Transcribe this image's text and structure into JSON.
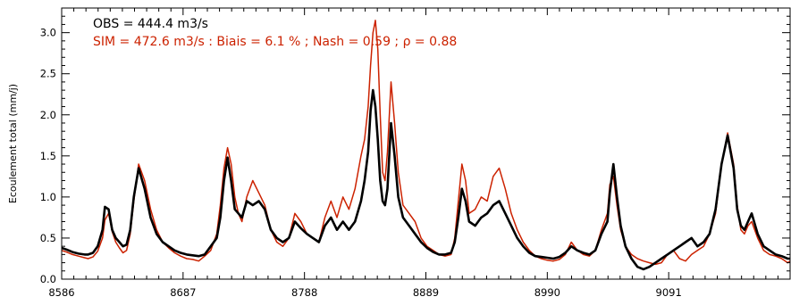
{
  "chart_data": {
    "type": "line",
    "title": "",
    "xlabel": "",
    "ylabel": "Ecoulement total (mm/j)",
    "xlim": [
      8586,
      9192
    ],
    "ylim": [
      0,
      3.3
    ],
    "x_ticks": [
      8586,
      8687,
      8788,
      8889,
      8990,
      9091
    ],
    "x_tick_labels": [
      "8586",
      "8687",
      "8788",
      "8889",
      "8990",
      "9091"
    ],
    "y_ticks": [
      0,
      0.5,
      1.0,
      1.5,
      2.0,
      2.5,
      3.0
    ],
    "y_tick_labels": [
      "0.0",
      "0.5",
      "1.0",
      "1.5",
      "2.0",
      "2.5",
      "3.0"
    ],
    "grid": false,
    "legend": "none",
    "annotations": [
      {
        "name": "obs",
        "text": "OBS = 444.4 m3/s",
        "color": "#000000"
      },
      {
        "name": "sim",
        "text": "SIM = 472.6 m3/s : Biais = 6.1 % ; Nash = 0.59 ; ρ = 0.88",
        "color": "#cc2200"
      }
    ],
    "series": [
      {
        "color": "#cc2200",
        "x": [
          8586,
          8590,
          8595,
          8600,
          8605,
          8608,
          8612,
          8616,
          8620,
          8622,
          8625,
          8628,
          8631,
          8634,
          8637,
          8640,
          8643,
          8646,
          8650,
          8655,
          8660,
          8665,
          8670,
          8675,
          8680,
          8685,
          8690,
          8695,
          8700,
          8705,
          8710,
          8715,
          8718,
          8721,
          8724,
          8727,
          8730,
          8733,
          8736,
          8740,
          8745,
          8750,
          8755,
          8760,
          8765,
          8770,
          8775,
          8780,
          8785,
          8790,
          8795,
          8800,
          8805,
          8810,
          8815,
          8820,
          8825,
          8830,
          8835,
          8838,
          8841,
          8843,
          8845,
          8847,
          8849,
          8851,
          8853,
          8855,
          8857,
          8860,
          8863,
          8866,
          8870,
          8875,
          8880,
          8885,
          8890,
          8895,
          8900,
          8905,
          8910,
          8913,
          8916,
          8919,
          8922,
          8925,
          8930,
          8935,
          8940,
          8945,
          8950,
          8955,
          8960,
          8965,
          8970,
          8975,
          8980,
          8985,
          8990,
          8995,
          9000,
          9005,
          9010,
          9015,
          9020,
          9025,
          9030,
          9035,
          9040,
          9042,
          9045,
          9048,
          9051,
          9055,
          9060,
          9065,
          9070,
          9075,
          9080,
          9085,
          9090,
          9095,
          9100,
          9105,
          9110,
          9115,
          9120,
          9125,
          9130,
          9135,
          9140,
          9145,
          9148,
          9151,
          9154,
          9157,
          9160,
          9165,
          9170,
          9175,
          9180,
          9185,
          9190,
          9192
        ],
        "y": [
          0.35,
          0.33,
          0.3,
          0.28,
          0.26,
          0.25,
          0.27,
          0.34,
          0.5,
          0.72,
          0.8,
          0.58,
          0.45,
          0.38,
          0.32,
          0.35,
          0.55,
          0.95,
          1.4,
          1.2,
          0.85,
          0.6,
          0.45,
          0.38,
          0.32,
          0.28,
          0.25,
          0.24,
          0.22,
          0.28,
          0.35,
          0.55,
          0.9,
          1.35,
          1.6,
          1.4,
          1.0,
          0.8,
          0.7,
          1.0,
          1.2,
          1.05,
          0.9,
          0.6,
          0.45,
          0.4,
          0.5,
          0.8,
          0.7,
          0.55,
          0.5,
          0.45,
          0.75,
          0.95,
          0.75,
          1.0,
          0.85,
          1.1,
          1.5,
          1.7,
          2.1,
          2.6,
          3.0,
          3.15,
          2.8,
          2.0,
          1.3,
          1.2,
          1.55,
          2.4,
          1.9,
          1.3,
          0.9,
          0.8,
          0.7,
          0.5,
          0.4,
          0.35,
          0.3,
          0.28,
          0.3,
          0.5,
          0.95,
          1.4,
          1.2,
          0.8,
          0.85,
          1.0,
          0.95,
          1.25,
          1.35,
          1.1,
          0.8,
          0.6,
          0.45,
          0.35,
          0.28,
          0.25,
          0.23,
          0.22,
          0.24,
          0.3,
          0.45,
          0.35,
          0.3,
          0.28,
          0.35,
          0.6,
          0.8,
          1.15,
          1.25,
          0.9,
          0.6,
          0.4,
          0.3,
          0.25,
          0.22,
          0.2,
          0.18,
          0.2,
          0.3,
          0.35,
          0.25,
          0.22,
          0.3,
          0.35,
          0.4,
          0.55,
          0.8,
          1.4,
          1.78,
          1.4,
          0.9,
          0.6,
          0.55,
          0.65,
          0.7,
          0.5,
          0.35,
          0.3,
          0.28,
          0.25,
          0.2,
          0.22
        ]
      },
      {
        "color": "#000000",
        "x": [
          8586,
          8590,
          8595,
          8600,
          8605,
          8608,
          8612,
          8616,
          8620,
          8622,
          8625,
          8628,
          8631,
          8634,
          8637,
          8640,
          8643,
          8646,
          8650,
          8655,
          8660,
          8665,
          8670,
          8675,
          8680,
          8685,
          8690,
          8695,
          8700,
          8705,
          8710,
          8715,
          8718,
          8721,
          8724,
          8727,
          8730,
          8733,
          8736,
          8740,
          8745,
          8750,
          8755,
          8760,
          8765,
          8770,
          8775,
          8780,
          8785,
          8790,
          8795,
          8800,
          8805,
          8810,
          8815,
          8820,
          8825,
          8830,
          8835,
          8838,
          8841,
          8843,
          8845,
          8847,
          8849,
          8851,
          8853,
          8855,
          8857,
          8860,
          8863,
          8866,
          8870,
          8875,
          8880,
          8885,
          8890,
          8895,
          8900,
          8905,
          8910,
          8913,
          8916,
          8919,
          8922,
          8925,
          8930,
          8935,
          8940,
          8945,
          8950,
          8955,
          8960,
          8965,
          8970,
          8975,
          8980,
          8985,
          8990,
          8995,
          9000,
          9005,
          9010,
          9015,
          9020,
          9025,
          9030,
          9035,
          9040,
          9042,
          9045,
          9048,
          9051,
          9055,
          9060,
          9065,
          9070,
          9075,
          9080,
          9085,
          9090,
          9095,
          9100,
          9105,
          9110,
          9115,
          9120,
          9125,
          9130,
          9135,
          9140,
          9145,
          9148,
          9151,
          9154,
          9157,
          9160,
          9165,
          9170,
          9175,
          9180,
          9185,
          9190,
          9192
        ],
        "y": [
          0.38,
          0.36,
          0.33,
          0.31,
          0.3,
          0.3,
          0.32,
          0.4,
          0.6,
          0.88,
          0.85,
          0.6,
          0.5,
          0.45,
          0.4,
          0.42,
          0.6,
          1.0,
          1.35,
          1.1,
          0.75,
          0.55,
          0.45,
          0.4,
          0.35,
          0.32,
          0.3,
          0.29,
          0.28,
          0.3,
          0.4,
          0.5,
          0.75,
          1.2,
          1.48,
          1.2,
          0.85,
          0.8,
          0.75,
          0.95,
          0.9,
          0.95,
          0.85,
          0.6,
          0.5,
          0.45,
          0.5,
          0.7,
          0.62,
          0.55,
          0.5,
          0.45,
          0.65,
          0.75,
          0.6,
          0.7,
          0.6,
          0.7,
          0.95,
          1.2,
          1.55,
          2.05,
          2.3,
          2.1,
          1.7,
          1.2,
          0.95,
          0.9,
          1.1,
          1.9,
          1.5,
          1.0,
          0.75,
          0.65,
          0.55,
          0.45,
          0.38,
          0.33,
          0.3,
          0.3,
          0.32,
          0.45,
          0.75,
          1.1,
          0.95,
          0.7,
          0.65,
          0.75,
          0.8,
          0.9,
          0.95,
          0.8,
          0.65,
          0.5,
          0.4,
          0.32,
          0.28,
          0.27,
          0.26,
          0.25,
          0.27,
          0.32,
          0.4,
          0.35,
          0.32,
          0.3,
          0.35,
          0.55,
          0.7,
          1.05,
          1.4,
          1.0,
          0.65,
          0.4,
          0.25,
          0.15,
          0.12,
          0.15,
          0.2,
          0.25,
          0.3,
          0.35,
          0.4,
          0.45,
          0.5,
          0.4,
          0.45,
          0.55,
          0.85,
          1.4,
          1.75,
          1.35,
          0.85,
          0.65,
          0.6,
          0.7,
          0.8,
          0.55,
          0.4,
          0.35,
          0.3,
          0.28,
          0.25,
          0.25
        ]
      }
    ]
  }
}
